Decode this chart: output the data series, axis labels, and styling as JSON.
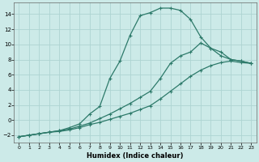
{
  "xlabel": "Humidex (Indice chaleur)",
  "ylabel": "",
  "background_color": "#cceae8",
  "grid_color": "#aed4d2",
  "line_color": "#2d7a6a",
  "xlim": [
    -0.5,
    23.5
  ],
  "ylim": [
    -3.0,
    15.5
  ],
  "xticks": [
    0,
    1,
    2,
    3,
    4,
    5,
    6,
    7,
    8,
    9,
    10,
    11,
    12,
    13,
    14,
    15,
    16,
    17,
    18,
    19,
    20,
    21,
    22,
    23
  ],
  "yticks": [
    -2,
    0,
    2,
    4,
    6,
    8,
    10,
    12,
    14
  ],
  "line1_x": [
    0,
    1,
    2,
    3,
    4,
    5,
    6,
    7,
    8,
    9,
    10,
    11,
    12,
    13,
    14,
    15,
    16,
    17,
    18,
    19,
    20,
    21,
    22,
    23
  ],
  "line1_y": [
    -2.2,
    -2.0,
    -1.8,
    -1.6,
    -1.5,
    -1.3,
    -1.0,
    -0.6,
    -0.3,
    0.1,
    0.5,
    0.9,
    1.4,
    1.9,
    2.8,
    3.8,
    4.8,
    5.8,
    6.6,
    7.2,
    7.6,
    7.8,
    7.6,
    7.5
  ],
  "line2_x": [
    0,
    1,
    2,
    3,
    4,
    5,
    6,
    7,
    8,
    9,
    10,
    11,
    12,
    13,
    14,
    15,
    16,
    17,
    18,
    19,
    20,
    21,
    22,
    23
  ],
  "line2_y": [
    -2.2,
    -2.0,
    -1.8,
    -1.6,
    -1.4,
    -1.2,
    -0.8,
    -0.4,
    0.2,
    0.8,
    1.5,
    2.2,
    3.0,
    3.8,
    5.5,
    7.5,
    8.5,
    9.0,
    10.2,
    9.5,
    9.0,
    8.0,
    7.8,
    7.5
  ],
  "line3_x": [
    0,
    1,
    2,
    3,
    4,
    5,
    6,
    7,
    8,
    9,
    10,
    11,
    12,
    13,
    14,
    15,
    16,
    17,
    18,
    19,
    20,
    21,
    22,
    23
  ],
  "line3_y": [
    -2.2,
    -2.0,
    -1.8,
    -1.6,
    -1.4,
    -1.0,
    -0.5,
    0.8,
    1.8,
    5.5,
    7.8,
    11.2,
    13.8,
    14.2,
    14.8,
    14.8,
    14.5,
    13.3,
    11.0,
    9.5,
    8.5,
    8.0,
    7.8,
    7.5
  ]
}
